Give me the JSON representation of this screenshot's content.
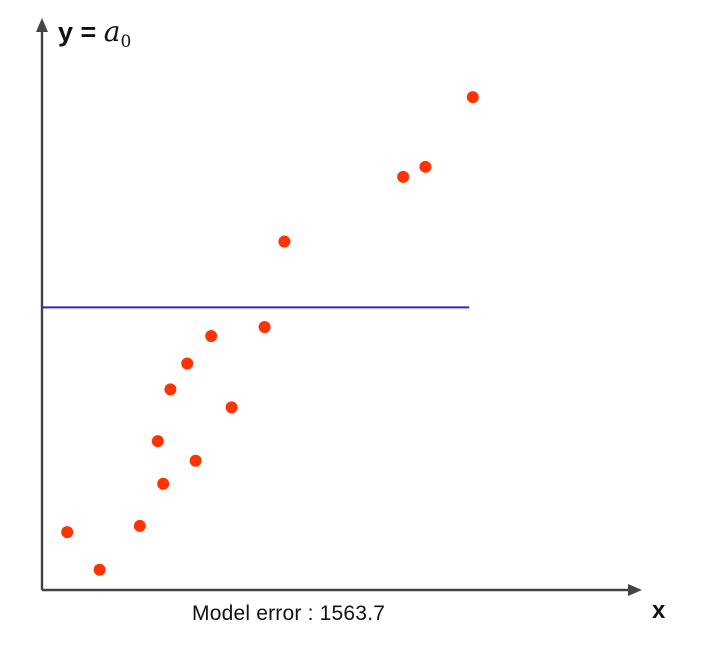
{
  "chart_data": {
    "type": "scatter",
    "title": "",
    "ylabel_prefix": "y = ",
    "ylabel_symbol": "a",
    "ylabel_subscript": "0",
    "xlabel": "x",
    "annotation": "Model error : 1563.7",
    "x_range": [
      0,
      100
    ],
    "y_range": [
      0,
      100
    ],
    "points": [
      {
        "x": 4.2,
        "y": 10.3
      },
      {
        "x": 9.6,
        "y": 3.6
      },
      {
        "x": 16.3,
        "y": 11.4
      },
      {
        "x": 19.3,
        "y": 26.5
      },
      {
        "x": 20.2,
        "y": 18.9
      },
      {
        "x": 21.4,
        "y": 35.7
      },
      {
        "x": 24.2,
        "y": 40.3
      },
      {
        "x": 25.6,
        "y": 23.0
      },
      {
        "x": 28.2,
        "y": 45.2
      },
      {
        "x": 31.6,
        "y": 32.5
      },
      {
        "x": 37.1,
        "y": 46.8
      },
      {
        "x": 40.4,
        "y": 62.0
      },
      {
        "x": 60.2,
        "y": 73.5
      },
      {
        "x": 63.9,
        "y": 75.3
      },
      {
        "x": 71.8,
        "y": 87.7
      }
    ],
    "fit_line": {
      "type": "horizontal",
      "y": 50.3,
      "x_start": 0,
      "x_end": 71.2
    },
    "colors": {
      "points": "#ff3300",
      "line": "#2b2bbd",
      "axes": "#444444"
    }
  }
}
